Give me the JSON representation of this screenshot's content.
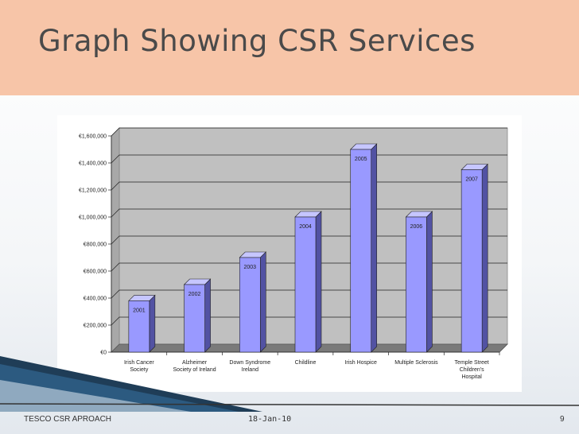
{
  "slide": {
    "title": "Graph Showing CSR Services",
    "footer_left": "TESCO CSR APROACH",
    "footer_date": "18-Jan-10",
    "page_number": "9"
  },
  "colors": {
    "title_band": "#f7c5a8",
    "bar_front": "#9999ff",
    "bar_side": "#5252a3",
    "bar_top": "#c6c6ff",
    "plot_wall": "#c0c0c0",
    "floor": "#7a7a7a"
  },
  "chart_data": {
    "type": "bar",
    "title": "",
    "xlabel": "",
    "ylabel": "",
    "categories": [
      [
        "Irish Cancer",
        "Society"
      ],
      [
        "Alzheimer",
        "Society of Ireland"
      ],
      [
        "Down Syndrome",
        "Ireland"
      ],
      [
        "Childline"
      ],
      [
        "Irish Hospice"
      ],
      [
        "Multiple Sclerosis"
      ],
      [
        "Temple Street",
        "Children's",
        "Hospital"
      ]
    ],
    "values": [
      380000,
      500000,
      700000,
      1000000,
      1500000,
      1000000,
      1350000
    ],
    "data_labels": [
      "2001",
      "2002",
      "2003",
      "2004",
      "2005",
      "2006",
      "2007"
    ],
    "ylim": [
      0,
      1600000
    ],
    "yticks": [
      0,
      200000,
      400000,
      600000,
      800000,
      1000000,
      1200000,
      1400000,
      1600000
    ],
    "ytick_labels": [
      "€0",
      "€200,000",
      "€400,000",
      "€600,000",
      "€800,000",
      "€1,000,000",
      "€1,200,000",
      "€1,400,000",
      "€1,600,000"
    ],
    "grid": true,
    "legend": "none"
  }
}
